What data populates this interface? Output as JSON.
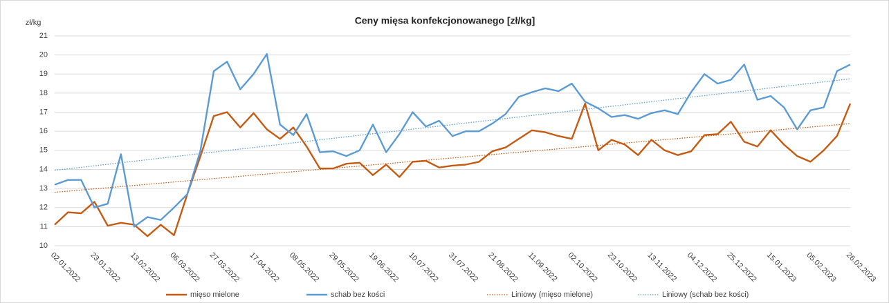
{
  "chart_data": {
    "type": "line",
    "title": "Ceny mięsa konfekcjonowanego [zł/kg]",
    "y_label": "zł/kg",
    "categories": [
      "02.01.2022",
      null,
      null,
      "23.01.2022",
      null,
      null,
      "13.02.2022",
      null,
      null,
      "06.03.2022",
      null,
      null,
      "27.03.2022",
      null,
      null,
      "17.04.2022",
      null,
      null,
      "08.05.2022",
      null,
      null,
      "29.05.2022",
      null,
      null,
      "19.06.2022",
      null,
      null,
      "10.07.2022",
      null,
      null,
      "31.07.2022",
      null,
      null,
      "21.08.2022",
      null,
      null,
      "11.09.2022",
      null,
      null,
      "02.10.2022",
      null,
      null,
      "23.10.2022",
      null,
      null,
      "13.11.2022",
      null,
      null,
      "04.12.2022",
      null,
      null,
      "25.12.2022",
      null,
      null,
      "15.01.2023",
      null,
      null,
      "05.02.2023",
      null,
      null,
      "26.02.2023"
    ],
    "series": [
      {
        "name": "mięso mielone",
        "color": "#c55a11",
        "line_style": "solid",
        "values": [
          11.1,
          11.75,
          11.7,
          12.3,
          11.05,
          11.2,
          11.1,
          10.5,
          11.1,
          10.55,
          12.7,
          14.7,
          16.8,
          17.0,
          16.2,
          16.95,
          16.1,
          15.6,
          16.2,
          15.2,
          14.05,
          14.05,
          14.3,
          14.35,
          13.7,
          14.25,
          13.6,
          14.4,
          14.45,
          14.1,
          14.2,
          14.25,
          14.4,
          14.95,
          15.15,
          15.6,
          16.05,
          15.95,
          15.75,
          15.6,
          17.45,
          15.0,
          15.55,
          15.3,
          14.75,
          15.55,
          15.0,
          14.75,
          14.95,
          15.8,
          15.85,
          16.5,
          15.45,
          15.2,
          16.05,
          15.3,
          14.7,
          14.4,
          15.0,
          15.75,
          17.45
        ]
      },
      {
        "name": "schab bez kości",
        "color": "#5b9bd5",
        "line_style": "solid",
        "values": [
          13.2,
          13.45,
          13.45,
          12.0,
          12.2,
          14.8,
          11.0,
          11.5,
          11.35,
          12.0,
          12.7,
          15.0,
          19.15,
          19.65,
          18.2,
          19.0,
          20.05,
          16.35,
          15.8,
          16.9,
          14.9,
          14.95,
          14.7,
          15.0,
          16.35,
          14.9,
          15.85,
          17.0,
          16.25,
          16.55,
          15.75,
          16.0,
          16.0,
          16.4,
          16.9,
          17.8,
          18.05,
          18.25,
          18.1,
          18.5,
          17.55,
          17.2,
          16.75,
          16.85,
          16.65,
          16.95,
          17.1,
          16.9,
          18.05,
          19.0,
          18.5,
          18.7,
          19.5,
          17.65,
          17.85,
          17.25,
          16.1,
          17.1,
          17.25,
          19.15,
          19.5
        ]
      },
      {
        "name": "Liniowy (mięso mielone)",
        "color": "#c55a11",
        "line_style": "dotted",
        "values": [
          12.8,
          12.86,
          12.92,
          12.98,
          13.04,
          13.1,
          13.16,
          13.22,
          13.28,
          13.34,
          13.4,
          13.46,
          13.52,
          13.58,
          13.64,
          13.7,
          13.76,
          13.82,
          13.88,
          13.94,
          14.0,
          14.06,
          14.12,
          14.18,
          14.24,
          14.3,
          14.36,
          14.42,
          14.48,
          14.54,
          14.6,
          14.66,
          14.72,
          14.78,
          14.84,
          14.9,
          14.96,
          15.02,
          15.08,
          15.14,
          15.2,
          15.26,
          15.32,
          15.38,
          15.44,
          15.5,
          15.56,
          15.62,
          15.68,
          15.74,
          15.8,
          15.86,
          15.92,
          15.98,
          16.04,
          16.1,
          16.16,
          16.22,
          16.28,
          16.34,
          16.4
        ]
      },
      {
        "name": "Liniowy (schab bez kości)",
        "color": "#5b9bd5",
        "line_style": "dotted",
        "values": [
          13.95,
          14.03,
          14.11,
          14.19,
          14.27,
          14.35,
          14.43,
          14.51,
          14.59,
          14.67,
          14.75,
          14.83,
          14.91,
          14.99,
          15.07,
          15.15,
          15.23,
          15.31,
          15.39,
          15.47,
          15.55,
          15.63,
          15.71,
          15.79,
          15.87,
          15.95,
          16.03,
          16.11,
          16.19,
          16.27,
          16.35,
          16.43,
          16.51,
          16.59,
          16.67,
          16.75,
          16.83,
          16.91,
          16.99,
          17.07,
          17.15,
          17.23,
          17.31,
          17.39,
          17.47,
          17.55,
          17.63,
          17.71,
          17.79,
          17.87,
          17.95,
          18.03,
          18.11,
          18.19,
          18.27,
          18.35,
          18.43,
          18.51,
          18.59,
          18.67,
          18.75
        ]
      }
    ],
    "ylim": [
      10,
      21
    ],
    "yticks": [
      10,
      11,
      12,
      13,
      14,
      15,
      16,
      17,
      18,
      19,
      20,
      21
    ],
    "grid": true,
    "legend": "bottom"
  }
}
